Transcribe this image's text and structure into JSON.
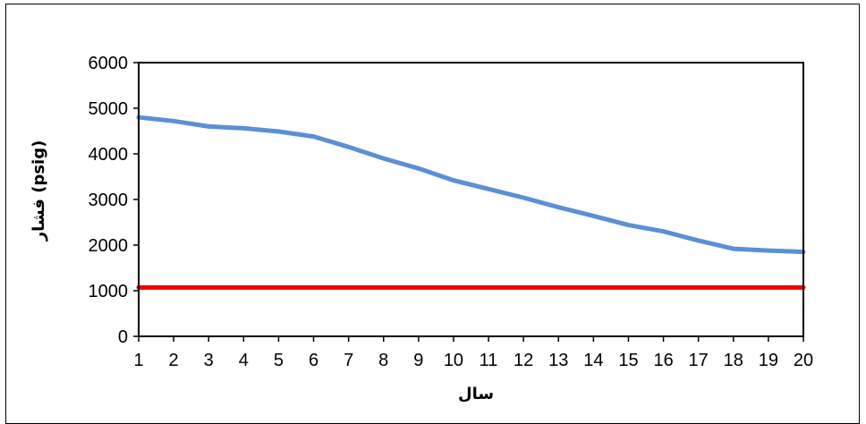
{
  "chart_data": {
    "type": "line",
    "xlabel": "سال",
    "ylabel": "فشار (psig)",
    "x": [
      1,
      2,
      3,
      4,
      5,
      6,
      7,
      8,
      9,
      10,
      11,
      12,
      13,
      14,
      15,
      16,
      17,
      18,
      19,
      20
    ],
    "x_tick_labels": [
      "1",
      "2",
      "3",
      "4",
      "5",
      "6",
      "7",
      "8",
      "9",
      "10",
      "11",
      "12",
      "13",
      "14",
      "15",
      "16",
      "17",
      "18",
      "19",
      "20"
    ],
    "y_tick_labels": [
      "0",
      "1000",
      "2000",
      "3000",
      "4000",
      "5000",
      "6000"
    ],
    "xlim": [
      1,
      20
    ],
    "ylim": [
      0,
      6000
    ],
    "grid": false,
    "series": [
      {
        "color": "#5b8fd6",
        "values": [
          4800,
          4720,
          4600,
          4560,
          4490,
          4380,
          4150,
          3900,
          3680,
          3420,
          3230,
          3040,
          2830,
          2640,
          2440,
          2300,
          2100,
          1920,
          1880,
          1850
        ]
      },
      {
        "color": "#ee0000",
        "values": [
          1070,
          1070,
          1070,
          1070,
          1070,
          1070,
          1070,
          1070,
          1070,
          1070,
          1070,
          1070,
          1070,
          1070,
          1070,
          1070,
          1070,
          1070,
          1070,
          1070
        ]
      }
    ]
  }
}
